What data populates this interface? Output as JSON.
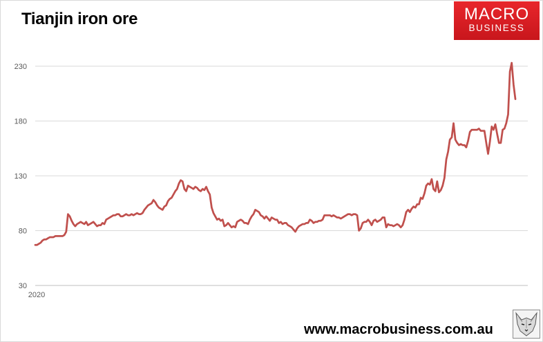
{
  "title": "Tianjin iron ore",
  "logo": {
    "line1": "MACRO",
    "line2": "BUSINESS",
    "color": "#d71920"
  },
  "website": "www.macrobusiness.com.au",
  "wolf_icon": "wolf-face-icon",
  "chart_data": {
    "type": "line",
    "title": "Tianjin iron ore",
    "xlabel": "",
    "ylabel": "",
    "x_tick_labels": [
      "2020"
    ],
    "ylim": [
      30,
      230
    ],
    "yticks": [
      30,
      80,
      130,
      180,
      230
    ],
    "grid": true,
    "legend": "none",
    "line_color": "#c0504d",
    "series": [
      {
        "values": [
          67,
          67,
          68,
          69,
          71,
          72,
          72,
          73,
          74,
          74,
          74,
          75,
          75,
          75,
          75,
          75,
          76,
          79,
          95,
          93,
          89,
          86,
          84,
          86,
          87,
          88,
          87,
          86,
          88,
          85,
          86,
          87,
          88,
          86,
          84,
          85,
          85,
          87,
          86,
          90,
          91,
          92,
          93,
          94,
          94,
          95,
          95,
          93,
          93,
          94,
          95,
          94,
          94,
          95,
          94,
          95,
          96,
          95,
          95,
          96,
          99,
          101,
          103,
          104,
          105,
          108,
          106,
          103,
          101,
          100,
          99,
          102,
          103,
          107,
          109,
          110,
          113,
          116,
          118,
          123,
          126,
          125,
          118,
          116,
          121,
          120,
          119,
          118,
          120,
          119,
          117,
          116,
          118,
          117,
          120,
          116,
          113,
          101,
          96,
          93,
          90,
          91,
          89,
          90,
          84,
          85,
          87,
          85,
          83,
          84,
          83,
          88,
          89,
          90,
          89,
          87,
          87,
          86,
          90,
          93,
          95,
          99,
          98,
          97,
          94,
          93,
          91,
          93,
          91,
          89,
          92,
          91,
          90,
          90,
          87,
          88,
          86,
          87,
          87,
          85,
          84,
          83,
          81,
          79,
          82,
          84,
          85,
          86,
          86,
          87,
          87,
          90,
          89,
          87,
          88,
          88,
          89,
          89,
          90,
          94,
          94,
          94,
          94,
          93,
          94,
          93,
          92,
          92,
          91,
          92,
          93,
          94,
          95,
          95,
          94,
          95,
          95,
          94,
          80,
          82,
          87,
          88,
          88,
          90,
          88,
          85,
          89,
          90,
          88,
          89,
          90,
          92,
          92,
          83,
          86,
          85,
          85,
          84,
          85,
          86,
          85,
          83,
          85,
          90,
          97,
          99,
          97,
          100,
          102,
          101,
          104,
          104,
          110,
          109,
          114,
          121,
          123,
          122,
          127,
          118,
          116,
          125,
          115,
          117,
          121,
          128,
          145,
          152,
          163,
          165,
          178,
          163,
          160,
          158,
          159,
          158,
          158,
          156,
          162,
          170,
          172,
          172,
          172,
          172,
          173,
          171,
          171,
          171,
          160,
          150,
          161,
          175,
          172,
          177,
          168,
          160,
          160,
          172,
          173,
          178,
          186,
          225,
          233,
          213,
          200
        ]
      }
    ]
  }
}
